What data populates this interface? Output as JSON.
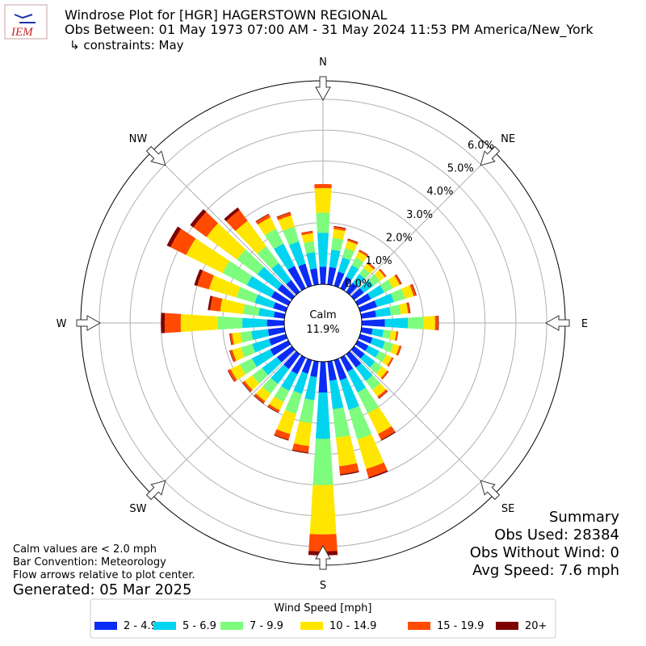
{
  "chart_data": {
    "type": "windrose",
    "title_lines": [
      "Windrose Plot for [HGR] HAGERSTOWN REGIONAL",
      "Obs Between: 01 May 1973 07:00 AM - 31 May 2024 11:53 PM America/New_York",
      "↳ constraints: May"
    ],
    "logo_text": "IEM",
    "x": [
      0,
      10,
      20,
      30,
      40,
      50,
      60,
      70,
      80,
      90,
      100,
      110,
      120,
      130,
      140,
      150,
      160,
      170,
      180,
      190,
      200,
      210,
      220,
      230,
      240,
      250,
      260,
      270,
      280,
      290,
      300,
      310,
      320,
      330,
      340,
      350
    ],
    "compass": [
      "N",
      "NE",
      "E",
      "SE",
      "S",
      "SW",
      "W",
      "NW"
    ],
    "rlim": [
      0,
      6.6
    ],
    "rticks": [
      {
        "value": 0,
        "label": "0.0%"
      },
      {
        "value": 1,
        "label": "1.0%"
      },
      {
        "value": 2,
        "label": "2.0%"
      },
      {
        "value": 3,
        "label": "3.0%"
      },
      {
        "value": 4,
        "label": "4.0%"
      },
      {
        "value": 5,
        "label": "5.0%"
      },
      {
        "value": 6,
        "label": "6.0%"
      }
    ],
    "grid": true,
    "calm": {
      "label": "Calm",
      "value": 11.9,
      "value_label": "11.9%"
    },
    "legend_title": "Wind Speed [mph]",
    "series": [
      {
        "name": "2 - 4.9",
        "color": "#0a2cf5",
        "values": [
          0.57,
          0.57,
          0.48,
          0.42,
          0.36,
          0.39,
          0.48,
          0.57,
          0.48,
          0.75,
          0.36,
          0.42,
          0.39,
          0.42,
          0.54,
          0.51,
          0.68,
          0.63,
          1.0,
          0.51,
          0.46,
          0.6,
          0.6,
          0.6,
          0.66,
          0.57,
          0.54,
          0.56,
          0.35,
          0.43,
          0.62,
          0.57,
          0.48,
          0.81,
          0.75,
          0.53
        ]
      },
      {
        "name": "5 - 6.9",
        "color": "#00d4ee",
        "values": [
          1.1,
          0.57,
          0.48,
          0.42,
          0.36,
          0.39,
          0.48,
          0.57,
          0.48,
          0.75,
          0.36,
          0.42,
          0.39,
          0.42,
          0.54,
          0.75,
          1.0,
          0.93,
          1.5,
          0.75,
          0.68,
          0.6,
          0.6,
          0.6,
          0.66,
          0.57,
          0.54,
          0.8,
          0.5,
          0.62,
          0.88,
          0.82,
          0.68,
          0.81,
          0.75,
          0.53
        ]
      },
      {
        "name": "7 - 9.9",
        "color": "#7dfc7d",
        "values": [
          0.65,
          0.38,
          0.32,
          0.28,
          0.24,
          0.26,
          0.32,
          0.38,
          0.32,
          0.5,
          0.24,
          0.28,
          0.26,
          0.28,
          0.36,
          0.75,
          1.0,
          0.93,
          1.5,
          0.75,
          0.68,
          0.4,
          0.4,
          0.4,
          0.44,
          0.38,
          0.36,
          0.8,
          0.5,
          0.62,
          0.88,
          0.82,
          0.68,
          0.54,
          0.5,
          0.35
        ]
      },
      {
        "name": "10 - 14.9",
        "color": "#ffe600",
        "values": [
          0.8,
          0.29,
          0.24,
          0.21,
          0.18,
          0.2,
          0.24,
          0.29,
          0.24,
          0.38,
          0.18,
          0.21,
          0.2,
          0.21,
          0.27,
          0.75,
          1.0,
          0.93,
          1.6,
          0.75,
          0.68,
          0.3,
          0.3,
          0.3,
          0.33,
          0.29,
          0.27,
          1.2,
          0.75,
          0.93,
          1.32,
          1.23,
          1.02,
          0.41,
          0.38,
          0.26
        ]
      },
      {
        "name": "15 - 19.9",
        "color": "#ff4a00",
        "values": [
          0.13,
          0.08,
          0.06,
          0.06,
          0.05,
          0.05,
          0.06,
          0.08,
          0.06,
          0.1,
          0.05,
          0.06,
          0.05,
          0.06,
          0.07,
          0.21,
          0.28,
          0.26,
          0.55,
          0.21,
          0.19,
          0.08,
          0.08,
          0.08,
          0.09,
          0.08,
          0.07,
          0.52,
          0.33,
          0.4,
          0.57,
          0.53,
          0.44,
          0.11,
          0.1,
          0.07
        ]
      },
      {
        "name": "20+",
        "color": "#7f0000",
        "values": [
          0,
          0.02,
          0.02,
          0.01,
          0.01,
          0.01,
          0.02,
          0.02,
          0.02,
          0.02,
          0.01,
          0.01,
          0.01,
          0.01,
          0.02,
          0.03,
          0.04,
          0.04,
          0.13,
          0.03,
          0.03,
          0.02,
          0.02,
          0.02,
          0.02,
          0.02,
          0.02,
          0.12,
          0.07,
          0.1,
          0.13,
          0.13,
          0.1,
          0.02,
          0.02,
          0.01
        ]
      }
    ],
    "notes": [
      "Calm values are < 2.0 mph",
      "Bar Convention: Meteorology",
      "Flow arrows relative to plot center."
    ],
    "generated": "Generated: 05 Mar 2025",
    "summary": [
      "Summary",
      "Obs Used: 28384",
      "Obs Without Wind: 0",
      "Avg Speed: 7.6 mph"
    ]
  }
}
